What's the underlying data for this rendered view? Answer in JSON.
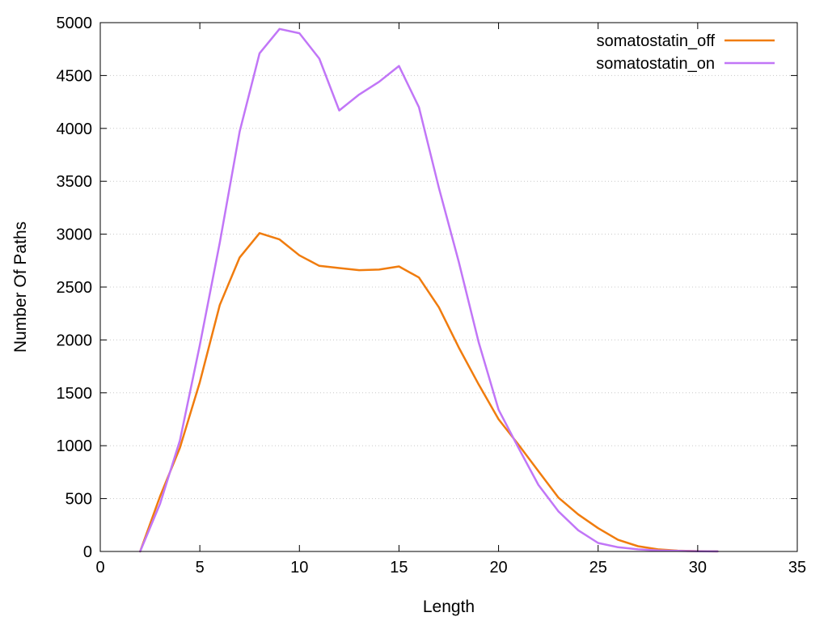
{
  "chart_data": {
    "type": "line",
    "title": "",
    "xlabel": "Length",
    "ylabel": "Number Of Paths",
    "xlim": [
      0,
      35
    ],
    "ylim": [
      0,
      5000
    ],
    "xticks": [
      0,
      5,
      10,
      15,
      20,
      25,
      30,
      35
    ],
    "yticks": [
      0,
      500,
      1000,
      1500,
      2000,
      2500,
      3000,
      3500,
      4000,
      4500,
      5000
    ],
    "grid": "horizontal dotted",
    "legend_position": "top-right",
    "series": [
      {
        "name": "somatostatin_off",
        "color": "#f07c0e",
        "x": [
          2,
          3,
          4,
          5,
          6,
          7,
          8,
          9,
          10,
          11,
          12,
          13,
          14,
          15,
          16,
          17,
          18,
          19,
          20,
          21,
          22,
          23,
          24,
          25,
          26,
          27,
          28,
          29,
          30,
          31
        ],
        "y": [
          0,
          520,
          980,
          1600,
          2330,
          2780,
          3010,
          2950,
          2800,
          2700,
          2680,
          2660,
          2665,
          2695,
          2590,
          2310,
          1930,
          1580,
          1250,
          1010,
          760,
          510,
          350,
          220,
          110,
          50,
          20,
          8,
          3,
          1
        ]
      },
      {
        "name": "somatostatin_on",
        "color": "#c176f7",
        "x": [
          2,
          3,
          4,
          5,
          6,
          7,
          8,
          9,
          10,
          11,
          12,
          13,
          14,
          15,
          16,
          17,
          18,
          19,
          20,
          21,
          22,
          23,
          24,
          25,
          26,
          27,
          28,
          29,
          30,
          31
        ],
        "y": [
          0,
          450,
          1050,
          1950,
          2920,
          3970,
          4710,
          4940,
          4900,
          4660,
          4170,
          4320,
          4440,
          4590,
          4200,
          3440,
          2740,
          1980,
          1340,
          980,
          630,
          380,
          200,
          80,
          40,
          20,
          10,
          5,
          2,
          1
        ]
      }
    ]
  }
}
